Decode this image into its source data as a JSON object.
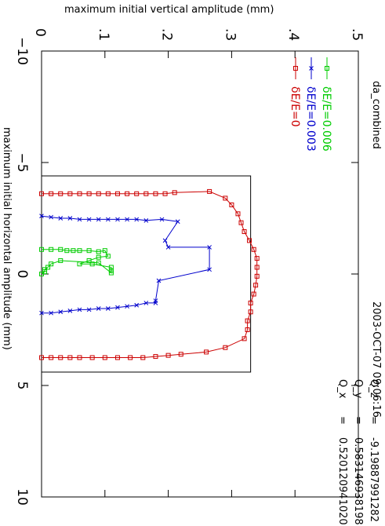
{
  "chart_data": {
    "type": "line",
    "title": "da_combined",
    "timestamp": "2003-OCT-07 09:06:16",
    "xlabel": "maximum initial horizontal amplitude (mm)",
    "ylabel": "maximum initial vertical amplitude (mm)",
    "xlim": [
      -10,
      10
    ],
    "ylim": [
      0,
      0.5
    ],
    "x_ticks": [
      "-10",
      "-5",
      "0",
      "5",
      "10"
    ],
    "y_ticks": [
      "0",
      ".1",
      ".2",
      ".3",
      ".4",
      ".5"
    ],
    "grid": false,
    "legend_position": "top-right",
    "annotations": [
      {
        "label": "Q_x",
        "eq": "=",
        "value": "0.520120941020"
      },
      {
        "label": "Q_y",
        "eq": "=",
        "value": "0.583146938198"
      },
      {
        "label": "Q_z",
        "eq": "=",
        "value": "-9.19887991282"
      }
    ],
    "reference_box": {
      "x": [
        -4.4,
        4.4
      ],
      "y": [
        0,
        0.33
      ]
    },
    "series": [
      {
        "name": "δE/E=0",
        "color": "#cc0000",
        "marker": "square",
        "points": [
          [
            -3.6,
            0.0
          ],
          [
            -3.6,
            0.015
          ],
          [
            -3.6,
            0.03
          ],
          [
            -3.6,
            0.045
          ],
          [
            -3.6,
            0.06
          ],
          [
            -3.6,
            0.075
          ],
          [
            -3.6,
            0.09
          ],
          [
            -3.6,
            0.105
          ],
          [
            -3.6,
            0.12
          ],
          [
            -3.6,
            0.135
          ],
          [
            -3.6,
            0.15
          ],
          [
            -3.6,
            0.165
          ],
          [
            -3.6,
            0.18
          ],
          [
            -3.6,
            0.195
          ],
          [
            -3.65,
            0.21
          ],
          [
            -3.7,
            0.265
          ],
          [
            -3.4,
            0.29
          ],
          [
            -3.1,
            0.3
          ],
          [
            -2.7,
            0.31
          ],
          [
            -2.3,
            0.315
          ],
          [
            -1.9,
            0.32
          ],
          [
            -1.5,
            0.328
          ],
          [
            -1.1,
            0.335
          ],
          [
            -0.7,
            0.34
          ],
          [
            -0.3,
            0.34
          ],
          [
            0.1,
            0.34
          ],
          [
            0.5,
            0.338
          ],
          [
            0.9,
            0.335
          ],
          [
            1.3,
            0.33
          ],
          [
            1.7,
            0.33
          ],
          [
            2.1,
            0.325
          ],
          [
            2.5,
            0.325
          ],
          [
            2.9,
            0.32
          ],
          [
            3.3,
            0.29
          ],
          [
            3.5,
            0.26
          ],
          [
            3.6,
            0.22
          ],
          [
            3.65,
            0.2
          ],
          [
            3.7,
            0.18
          ],
          [
            3.75,
            0.16
          ],
          [
            3.75,
            0.14
          ],
          [
            3.75,
            0.12
          ],
          [
            3.75,
            0.1
          ],
          [
            3.75,
            0.08
          ],
          [
            3.75,
            0.06
          ],
          [
            3.75,
            0.045
          ],
          [
            3.75,
            0.03
          ],
          [
            3.75,
            0.015
          ],
          [
            3.75,
            0.0
          ]
        ]
      },
      {
        "name": "δE/E=0.003",
        "color": "#0000cc",
        "marker": "x",
        "points": [
          [
            -2.6,
            0.0
          ],
          [
            -2.55,
            0.015
          ],
          [
            -2.5,
            0.03
          ],
          [
            -2.5,
            0.045
          ],
          [
            -2.45,
            0.06
          ],
          [
            -2.45,
            0.075
          ],
          [
            -2.45,
            0.09
          ],
          [
            -2.45,
            0.105
          ],
          [
            -2.45,
            0.12
          ],
          [
            -2.45,
            0.135
          ],
          [
            -2.45,
            0.15
          ],
          [
            -2.4,
            0.165
          ],
          [
            -2.45,
            0.19
          ],
          [
            -2.35,
            0.215
          ],
          [
            -1.5,
            0.195
          ],
          [
            -1.2,
            0.2
          ],
          [
            -1.2,
            0.265
          ],
          [
            -0.2,
            0.265
          ],
          [
            0.3,
            0.185
          ],
          [
            1.2,
            0.18
          ],
          [
            1.3,
            0.18
          ],
          [
            1.3,
            0.165
          ],
          [
            1.4,
            0.15
          ],
          [
            1.45,
            0.135
          ],
          [
            1.5,
            0.12
          ],
          [
            1.55,
            0.105
          ],
          [
            1.55,
            0.09
          ],
          [
            1.6,
            0.075
          ],
          [
            1.6,
            0.06
          ],
          [
            1.65,
            0.045
          ],
          [
            1.7,
            0.03
          ],
          [
            1.75,
            0.015
          ],
          [
            1.75,
            0.0
          ]
        ]
      },
      {
        "name": "δE/E=0.006",
        "color": "#00cc00",
        "marker": "square",
        "points": [
          [
            -1.1,
            0.0
          ],
          [
            -1.1,
            0.015
          ],
          [
            -1.1,
            0.03
          ],
          [
            -1.05,
            0.04
          ],
          [
            -1.05,
            0.05
          ],
          [
            -1.05,
            0.06
          ],
          [
            -1.05,
            0.075
          ],
          [
            -1.0,
            0.09
          ],
          [
            -1.05,
            0.1
          ],
          [
            -0.8,
            0.105
          ],
          [
            -0.75,
            0.09
          ],
          [
            -0.6,
            0.075
          ],
          [
            -0.45,
            0.06
          ],
          [
            -0.45,
            0.08
          ],
          [
            -0.3,
            0.11
          ],
          [
            -0.15,
            0.11
          ],
          [
            -0.05,
            0.11
          ],
          [
            -0.5,
            0.09
          ],
          [
            -0.6,
            0.03
          ],
          [
            -0.45,
            0.015
          ],
          [
            -0.3,
            0.01
          ],
          [
            -0.2,
            0.005
          ],
          [
            -0.1,
            0.005
          ],
          [
            0.0,
            0.0
          ]
        ]
      }
    ]
  }
}
